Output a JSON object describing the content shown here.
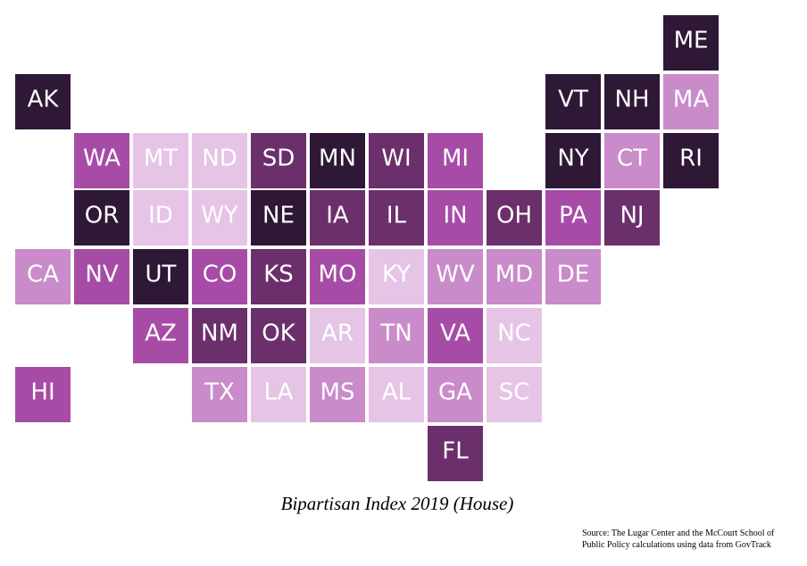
{
  "title": "Bipartisan Index 2019 (House)",
  "source": [
    "Source: The Lugar Center and the McCourt School of",
    "Public Policy calculations using data from GovTrack"
  ],
  "tiles": [
    {
      "label": "ME",
      "color": "#2e1836"
    },
    {
      "label": "AK",
      "color": "#2e1836"
    },
    {
      "label": "VT",
      "color": "#2e1836"
    },
    {
      "label": "NH",
      "color": "#2e1836"
    },
    {
      "label": "MA",
      "color": "#c98bc9"
    },
    {
      "label": "WA",
      "color": "#a64ca6"
    },
    {
      "label": "MT",
      "color": "#e6c4e6"
    },
    {
      "label": "ND",
      "color": "#e6c4e6"
    },
    {
      "label": "SD",
      "color": "#6b2f6b"
    },
    {
      "label": "MN",
      "color": "#2e1836"
    },
    {
      "label": "WI",
      "color": "#6b2f6b"
    },
    {
      "label": "MI",
      "color": "#a64ca6"
    },
    {
      "label": "NY",
      "color": "#2e1836"
    },
    {
      "label": "CT",
      "color": "#c98bc9"
    },
    {
      "label": "RI",
      "color": "#2e1836"
    },
    {
      "label": "OR",
      "color": "#2e1836"
    },
    {
      "label": "ID",
      "color": "#e6c4e6"
    },
    {
      "label": "WY",
      "color": "#e6c4e6"
    },
    {
      "label": "NE",
      "color": "#2e1836"
    },
    {
      "label": "IA",
      "color": "#6b2f6b"
    },
    {
      "label": "IL",
      "color": "#6b2f6b"
    },
    {
      "label": "IN",
      "color": "#a64ca6"
    },
    {
      "label": "OH",
      "color": "#6b2f6b"
    },
    {
      "label": "PA",
      "color": "#a64ca6"
    },
    {
      "label": "NJ",
      "color": "#6b2f6b"
    },
    {
      "label": "CA",
      "color": "#c98bc9"
    },
    {
      "label": "NV",
      "color": "#a64ca6"
    },
    {
      "label": "UT",
      "color": "#2e1836"
    },
    {
      "label": "CO",
      "color": "#a64ca6"
    },
    {
      "label": "KS",
      "color": "#6b2f6b"
    },
    {
      "label": "MO",
      "color": "#a64ca6"
    },
    {
      "label": "KY",
      "color": "#e6c4e6"
    },
    {
      "label": "WV",
      "color": "#c98bc9"
    },
    {
      "label": "MD",
      "color": "#c98bc9"
    },
    {
      "label": "DE",
      "color": "#c98bc9"
    },
    {
      "label": "AZ",
      "color": "#a64ca6"
    },
    {
      "label": "NM",
      "color": "#6b2f6b"
    },
    {
      "label": "OK",
      "color": "#6b2f6b"
    },
    {
      "label": "AR",
      "color": "#e6c4e6"
    },
    {
      "label": "TN",
      "color": "#c98bc9"
    },
    {
      "label": "VA",
      "color": "#a64ca6"
    },
    {
      "label": "NC",
      "color": "#e6c4e6"
    },
    {
      "label": "HI",
      "color": "#a64ca6"
    },
    {
      "label": "TX",
      "color": "#c98bc9"
    },
    {
      "label": "LA",
      "color": "#e6c4e6"
    },
    {
      "label": "MS",
      "color": "#c98bc9"
    },
    {
      "label": "AL",
      "color": "#e6c4e6"
    },
    {
      "label": "GA",
      "color": "#c98bc9"
    },
    {
      "label": "SC",
      "color": "#e6c4e6"
    },
    {
      "label": "FL",
      "color": "#6b2f6b"
    }
  ]
}
